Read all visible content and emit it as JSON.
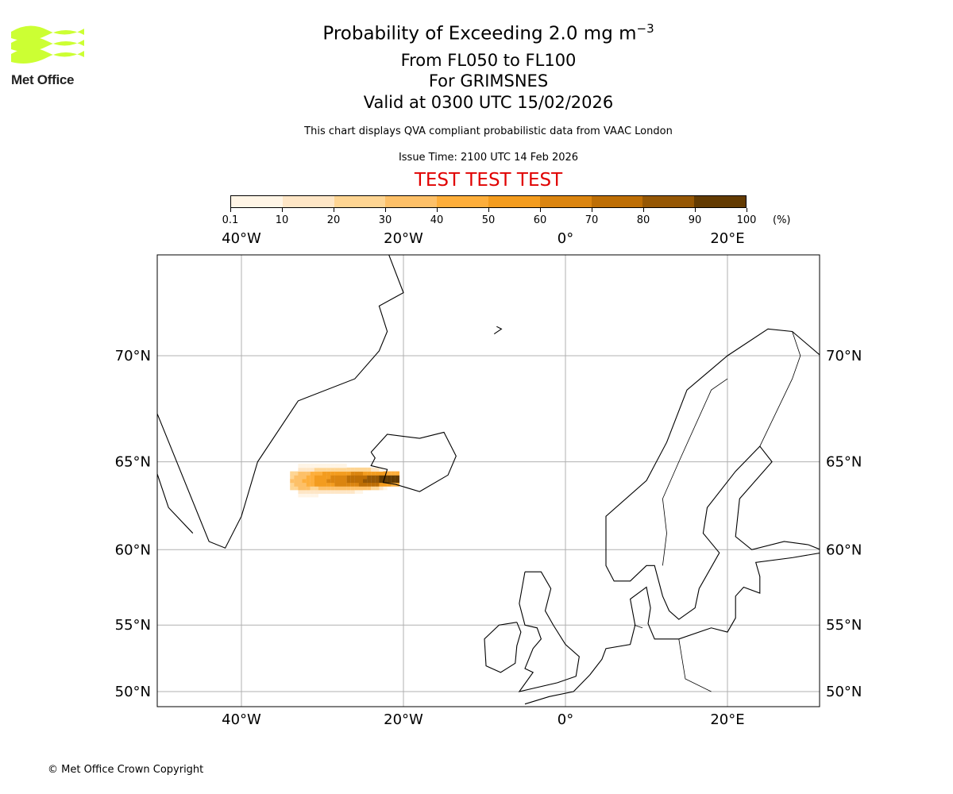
{
  "logo": {
    "text": "Met Office",
    "color": "#ccff33"
  },
  "title": {
    "line1": "Probability of Exceeding 2.0 mg m",
    "line1_sup": "−3",
    "line2": "From FL050 to FL100",
    "line3": "For GRIMSNES",
    "line4": "Valid at 0300 UTC 15/02/2026"
  },
  "subtitle": "This chart displays QVA compliant probabilistic data from VAAC London",
  "issue_time": "Issue Time: 2100 UTC 14 Feb 2026",
  "test_banner": "TEST TEST TEST",
  "test_color": "#e00000",
  "colorbar": {
    "ticks": [
      "0.1",
      "10",
      "20",
      "30",
      "40",
      "50",
      "60",
      "70",
      "80",
      "90",
      "100"
    ],
    "unit": "(%)",
    "colors": [
      "#fff5e6",
      "#fee6c6",
      "#fed593",
      "#fdc068",
      "#fdae3b",
      "#f39c1f",
      "#db8510",
      "#bd6e05",
      "#955704",
      "#633b02"
    ]
  },
  "chart_data": {
    "type": "heatmap",
    "projection": "mercator",
    "lon_range": [
      -50.4,
      31.4
    ],
    "lat_range": [
      49,
      75
    ],
    "lon_ticks": [
      {
        "v": -40,
        "label": "40°W"
      },
      {
        "v": -20,
        "label": "20°W"
      },
      {
        "v": 0,
        "label": "0°"
      },
      {
        "v": 20,
        "label": "20°E"
      }
    ],
    "lat_ticks": [
      {
        "v": 70,
        "label": "70°N"
      },
      {
        "v": 65,
        "label": "65°N"
      },
      {
        "v": 60,
        "label": "60°N"
      },
      {
        "v": 55,
        "label": "55°N"
      },
      {
        "v": 50,
        "label": "50°N"
      }
    ],
    "grid": true,
    "source": {
      "name": "GRIMSNES",
      "lon": -21.0,
      "lat": 64.0
    },
    "plume": {
      "lon_west": -34,
      "lon_east": -20.5,
      "lat_center": 64.0,
      "max_probability": 95
    }
  },
  "footer": "© Met Office Crown Copyright"
}
